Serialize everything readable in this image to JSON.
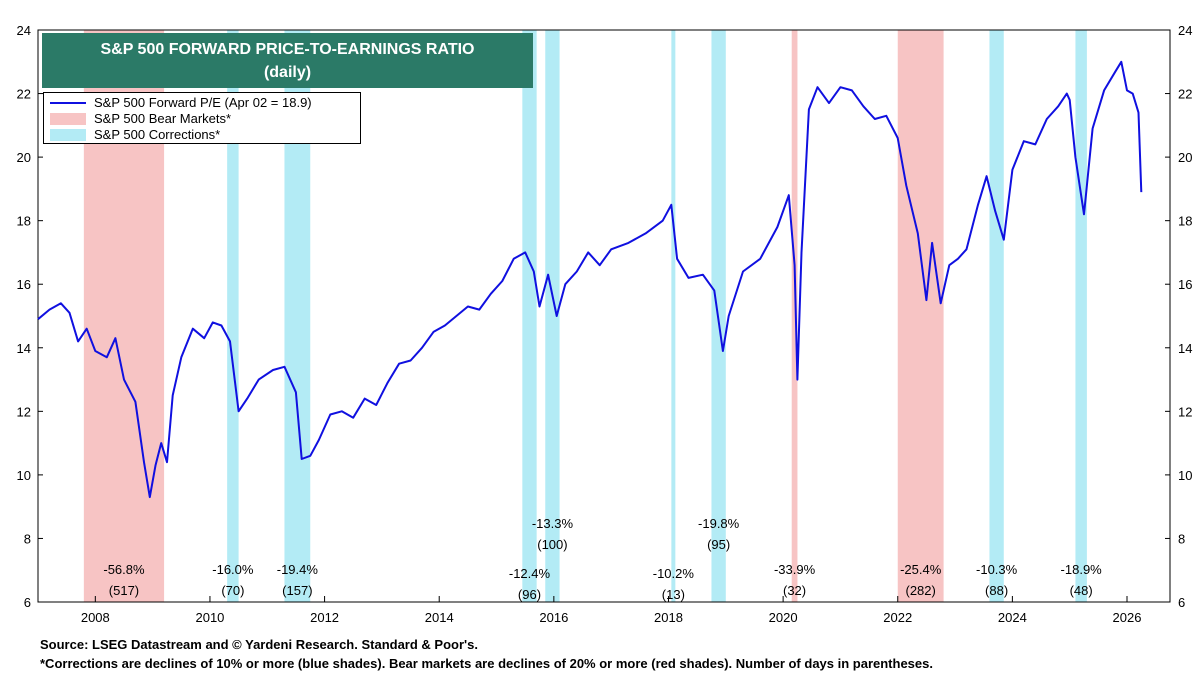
{
  "chart_data": {
    "type": "line",
    "title": "S&P 500 FORWARD PRICE-TO-EARNINGS RATIO",
    "subtitle": "(daily)",
    "ylim": [
      6,
      24
    ],
    "y_ticks": [
      6,
      8,
      10,
      12,
      14,
      16,
      18,
      20,
      22,
      24
    ],
    "xlim": [
      2007.0,
      2026.75
    ],
    "x_ticks": [
      "2008",
      "2010",
      "2012",
      "2014",
      "2016",
      "2018",
      "2020",
      "2022",
      "2024",
      "2026"
    ],
    "grid": false,
    "legend": {
      "placement": "top-left",
      "entries": [
        {
          "label": "S&P 500 Forward P/E (Apr 02 = 18.9)",
          "color": "#1010e0",
          "kind": "line"
        },
        {
          "label": "S&P 500 Bear Markets*",
          "color": "#f7c4c4",
          "kind": "band"
        },
        {
          "label": "S&P 500 Corrections*",
          "color": "#b3ebf5",
          "kind": "band"
        }
      ]
    },
    "series": [
      {
        "name": "S&P 500 Forward P/E",
        "color": "#1010e0",
        "points": [
          [
            2007.0,
            14.9
          ],
          [
            2007.2,
            15.2
          ],
          [
            2007.4,
            15.4
          ],
          [
            2007.55,
            15.1
          ],
          [
            2007.7,
            14.2
          ],
          [
            2007.85,
            14.6
          ],
          [
            2008.0,
            13.9
          ],
          [
            2008.2,
            13.7
          ],
          [
            2008.35,
            14.3
          ],
          [
            2008.5,
            13.0
          ],
          [
            2008.7,
            12.3
          ],
          [
            2008.85,
            10.4
          ],
          [
            2008.95,
            9.3
          ],
          [
            2009.05,
            10.3
          ],
          [
            2009.15,
            11.0
          ],
          [
            2009.25,
            10.4
          ],
          [
            2009.35,
            12.5
          ],
          [
            2009.5,
            13.7
          ],
          [
            2009.7,
            14.6
          ],
          [
            2009.9,
            14.3
          ],
          [
            2010.05,
            14.8
          ],
          [
            2010.2,
            14.7
          ],
          [
            2010.35,
            14.2
          ],
          [
            2010.5,
            12.0
          ],
          [
            2010.65,
            12.4
          ],
          [
            2010.85,
            13.0
          ],
          [
            2011.1,
            13.3
          ],
          [
            2011.3,
            13.4
          ],
          [
            2011.5,
            12.6
          ],
          [
            2011.6,
            10.5
          ],
          [
            2011.75,
            10.6
          ],
          [
            2011.9,
            11.1
          ],
          [
            2012.1,
            11.9
          ],
          [
            2012.3,
            12.0
          ],
          [
            2012.5,
            11.8
          ],
          [
            2012.7,
            12.4
          ],
          [
            2012.9,
            12.2
          ],
          [
            2013.1,
            12.9
          ],
          [
            2013.3,
            13.5
          ],
          [
            2013.5,
            13.6
          ],
          [
            2013.7,
            14.0
          ],
          [
            2013.9,
            14.5
          ],
          [
            2014.1,
            14.7
          ],
          [
            2014.3,
            15.0
          ],
          [
            2014.5,
            15.3
          ],
          [
            2014.7,
            15.2
          ],
          [
            2014.9,
            15.7
          ],
          [
            2015.1,
            16.1
          ],
          [
            2015.3,
            16.8
          ],
          [
            2015.5,
            17.0
          ],
          [
            2015.65,
            16.4
          ],
          [
            2015.75,
            15.3
          ],
          [
            2015.9,
            16.3
          ],
          [
            2016.05,
            15.0
          ],
          [
            2016.2,
            16.0
          ],
          [
            2016.4,
            16.4
          ],
          [
            2016.6,
            17.0
          ],
          [
            2016.8,
            16.6
          ],
          [
            2017.0,
            17.1
          ],
          [
            2017.3,
            17.3
          ],
          [
            2017.6,
            17.6
          ],
          [
            2017.9,
            18.0
          ],
          [
            2018.05,
            18.5
          ],
          [
            2018.15,
            16.8
          ],
          [
            2018.35,
            16.2
          ],
          [
            2018.6,
            16.3
          ],
          [
            2018.8,
            15.8
          ],
          [
            2018.95,
            13.9
          ],
          [
            2019.05,
            15.0
          ],
          [
            2019.3,
            16.4
          ],
          [
            2019.6,
            16.8
          ],
          [
            2019.9,
            17.8
          ],
          [
            2020.1,
            18.8
          ],
          [
            2020.2,
            16.6
          ],
          [
            2020.25,
            13.0
          ],
          [
            2020.32,
            17.0
          ],
          [
            2020.45,
            21.5
          ],
          [
            2020.6,
            22.2
          ],
          [
            2020.8,
            21.7
          ],
          [
            2021.0,
            22.2
          ],
          [
            2021.2,
            22.1
          ],
          [
            2021.4,
            21.6
          ],
          [
            2021.6,
            21.2
          ],
          [
            2021.8,
            21.3
          ],
          [
            2022.0,
            20.6
          ],
          [
            2022.15,
            19.1
          ],
          [
            2022.35,
            17.6
          ],
          [
            2022.5,
            15.5
          ],
          [
            2022.6,
            17.3
          ],
          [
            2022.75,
            15.4
          ],
          [
            2022.9,
            16.6
          ],
          [
            2023.05,
            16.8
          ],
          [
            2023.2,
            17.1
          ],
          [
            2023.4,
            18.5
          ],
          [
            2023.55,
            19.4
          ],
          [
            2023.7,
            18.3
          ],
          [
            2023.85,
            17.4
          ],
          [
            2024.0,
            19.6
          ],
          [
            2024.2,
            20.5
          ],
          [
            2024.4,
            20.4
          ],
          [
            2024.6,
            21.2
          ],
          [
            2024.8,
            21.6
          ],
          [
            2024.95,
            22.0
          ],
          [
            2025.0,
            21.8
          ],
          [
            2025.1,
            20.0
          ],
          [
            2025.25,
            18.2
          ],
          [
            2025.4,
            20.9
          ],
          [
            2025.6,
            22.1
          ],
          [
            2025.8,
            22.7
          ],
          [
            2025.9,
            23.0
          ],
          [
            2026.0,
            22.1
          ],
          [
            2026.1,
            22.0
          ],
          [
            2026.2,
            21.4
          ],
          [
            2026.25,
            18.9
          ]
        ]
      }
    ],
    "bands": [
      {
        "kind": "bear",
        "start": 2007.8,
        "end": 2009.2,
        "decline": "-56.8%",
        "days": "(517)",
        "row": "low"
      },
      {
        "kind": "correction",
        "start": 2010.3,
        "end": 2010.5,
        "decline": "-16.0%",
        "days": "(70)",
        "row": "low"
      },
      {
        "kind": "correction",
        "start": 2011.3,
        "end": 2011.75,
        "decline": "-19.4%",
        "days": "(157)",
        "row": "low"
      },
      {
        "kind": "correction",
        "start": 2015.45,
        "end": 2015.7,
        "decline": "-12.4%",
        "days": "(96)",
        "row": "lower"
      },
      {
        "kind": "correction",
        "start": 2015.85,
        "end": 2016.1,
        "decline": "-13.3%",
        "days": "(100)",
        "row": "high"
      },
      {
        "kind": "correction",
        "start": 2018.05,
        "end": 2018.12,
        "decline": "-10.2%",
        "days": "(13)",
        "row": "lower"
      },
      {
        "kind": "correction",
        "start": 2018.75,
        "end": 2019.0,
        "decline": "-19.8%",
        "days": "(95)",
        "row": "high"
      },
      {
        "kind": "bear",
        "start": 2020.15,
        "end": 2020.25,
        "decline": "-33.9%",
        "days": "(32)",
        "row": "low"
      },
      {
        "kind": "bear",
        "start": 2022.0,
        "end": 2022.8,
        "decline": "-25.4%",
        "days": "(282)",
        "row": "low"
      },
      {
        "kind": "correction",
        "start": 2023.6,
        "end": 2023.85,
        "decline": "-10.3%",
        "days": "(88)",
        "row": "low"
      },
      {
        "kind": "correction",
        "start": 2025.1,
        "end": 2025.3,
        "decline": "-18.9%",
        "days": "(48)",
        "row": "low"
      }
    ]
  },
  "footer": {
    "source": "Source: LSEG Datastream and © Yardeni Research. Standard & Poor's.",
    "note": "*Corrections are declines of 10% or more (blue shades). Bear markets are declines of 20% or more (red shades). Number of days in parentheses."
  }
}
